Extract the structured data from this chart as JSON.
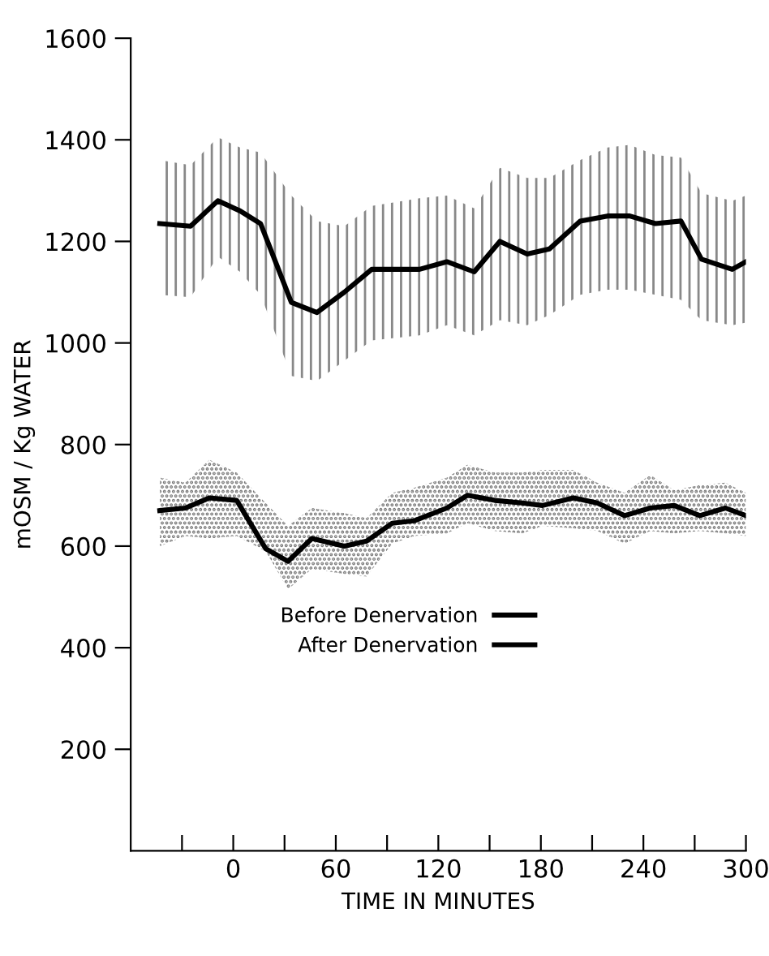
{
  "chart_data": {
    "type": "line",
    "xlabel": "TIME IN MINUTES",
    "ylabel": "mOSM / Kg WATER",
    "xlim": [
      -60,
      300
    ],
    "ylim": [
      0,
      1600
    ],
    "xticks": [
      {
        "value": -30,
        "label": null
      },
      0,
      {
        "value": 30,
        "label": null
      },
      60,
      {
        "value": 90,
        "label": null
      },
      120,
      {
        "value": 150,
        "label": null
      },
      180,
      {
        "value": 210,
        "label": null
      },
      240,
      {
        "value": 270,
        "label": null
      },
      300
    ],
    "yticks": [
      200,
      400,
      600,
      800,
      1000,
      1200,
      1400,
      1600
    ],
    "grid": false,
    "legend": "bottom",
    "marker": "none",
    "line_style": "solid",
    "series": [
      {
        "name": "Before Denervation",
        "color": "#000000",
        "x": [
          -43,
          -25,
          -9,
          4,
          16,
          34,
          49,
          65,
          81,
          109,
          125,
          141,
          156,
          172,
          185,
          203,
          219,
          232,
          247,
          262,
          274,
          292,
          300
        ],
        "values": [
          1235,
          1230,
          1280,
          1260,
          1235,
          1080,
          1060,
          1100,
          1145,
          1145,
          1160,
          1140,
          1200,
          1175,
          1185,
          1240,
          1250,
          1250,
          1235,
          1240,
          1165,
          1145,
          1160
        ],
        "upper": [
          1360,
          1350,
          1405,
          1385,
          1375,
          1290,
          1240,
          1230,
          1270,
          1285,
          1290,
          1265,
          1345,
          1325,
          1325,
          1360,
          1385,
          1390,
          1370,
          1365,
          1295,
          1280,
          1290
        ],
        "lower": [
          1095,
          1090,
          1170,
          1140,
          1095,
          935,
          925,
          965,
          1005,
          1015,
          1035,
          1015,
          1045,
          1035,
          1055,
          1095,
          1105,
          1105,
          1095,
          1085,
          1045,
          1035,
          1040
        ]
      },
      {
        "name": "After Denervation",
        "color": "#000000",
        "x": [
          -43,
          -28,
          -14,
          2,
          19,
          32,
          46,
          65,
          78,
          93,
          106,
          125,
          137,
          153,
          169,
          181,
          199,
          213,
          229,
          244,
          258,
          273,
          288,
          300
        ],
        "values": [
          670,
          675,
          695,
          690,
          595,
          570,
          615,
          600,
          610,
          645,
          650,
          675,
          700,
          690,
          685,
          680,
          695,
          685,
          660,
          675,
          680,
          660,
          675,
          660
        ],
        "upper": [
          735,
          725,
          770,
          745,
          685,
          640,
          675,
          665,
          655,
          705,
          715,
          735,
          760,
          745,
          745,
          750,
          750,
          725,
          705,
          740,
          710,
          720,
          725,
          705
        ],
        "lower": [
          600,
          620,
          615,
          620,
          590,
          515,
          555,
          545,
          540,
          605,
          620,
          625,
          645,
          630,
          625,
          640,
          635,
          630,
          605,
          630,
          625,
          630,
          625,
          620
        ]
      }
    ]
  }
}
